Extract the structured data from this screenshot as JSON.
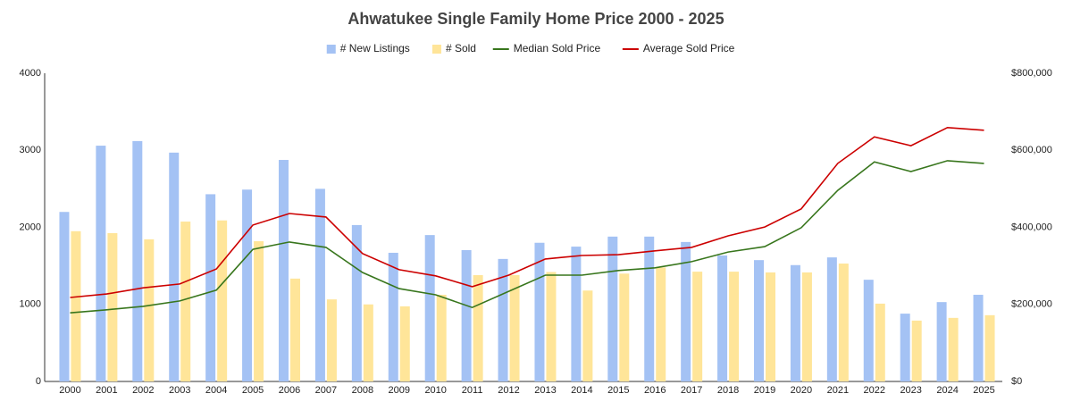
{
  "chart_data": {
    "type": "combo",
    "title": "Ahwatukee Single Family Home Price 2000 - 2025",
    "categories": [
      "2000",
      "2001",
      "2002",
      "2003",
      "2004",
      "2005",
      "2006",
      "2007",
      "2008",
      "2009",
      "2010",
      "2011",
      "2012",
      "2013",
      "2014",
      "2015",
      "2016",
      "2017",
      "2018",
      "2019",
      "2020",
      "2021",
      "2022",
      "2023",
      "2024",
      "2025"
    ],
    "series": [
      {
        "name": "# New Listings",
        "type": "bar",
        "color": "#a4c2f4",
        "values": [
          2200,
          3060,
          3120,
          2970,
          2430,
          2490,
          2875,
          2500,
          2030,
          1670,
          1900,
          1705,
          1590,
          1800,
          1750,
          1880,
          1880,
          1810,
          1635,
          1575,
          1510,
          1610,
          1320,
          880,
          1030,
          1125
        ]
      },
      {
        "name": "# Sold",
        "type": "bar",
        "color": "#ffe599",
        "values": [
          1950,
          1925,
          1845,
          2075,
          2090,
          1820,
          1335,
          1065,
          1000,
          975,
          1125,
          1380,
          1380,
          1420,
          1180,
          1400,
          1480,
          1425,
          1425,
          1415,
          1415,
          1530,
          1010,
          790,
          825,
          860
        ]
      },
      {
        "name": "Median Sold Price",
        "type": "line",
        "axis": "y2",
        "color": "#38761d",
        "values": [
          178000,
          186000,
          195000,
          209000,
          237000,
          343000,
          362000,
          348000,
          283000,
          241000,
          225000,
          192000,
          234000,
          276000,
          276000,
          288000,
          295000,
          311000,
          336000,
          350000,
          399000,
          496000,
          570000,
          545000,
          573000,
          566000
        ]
      },
      {
        "name": "Average Sold Price",
        "type": "line",
        "axis": "y2",
        "color": "#cc0000",
        "values": [
          218000,
          227000,
          243000,
          253000,
          292000,
          406000,
          436000,
          427000,
          332000,
          290000,
          274000,
          246000,
          276000,
          318000,
          327000,
          329000,
          339000,
          348000,
          378000,
          401000,
          448000,
          566000,
          635000,
          612000,
          659000,
          652000
        ]
      }
    ],
    "ylim": [
      0,
      4000
    ],
    "yticks": [
      0,
      1000,
      2000,
      3000,
      4000
    ],
    "y2lim": [
      0,
      800000
    ],
    "y2ticks": [
      {
        "value": 0,
        "label": "$0"
      },
      {
        "value": 200000,
        "label": "$200,000"
      },
      {
        "value": 400000,
        "label": "$400,000"
      },
      {
        "value": 600000,
        "label": "$600,000"
      },
      {
        "value": 800000,
        "label": "$800,000"
      }
    ],
    "legend": "top"
  }
}
